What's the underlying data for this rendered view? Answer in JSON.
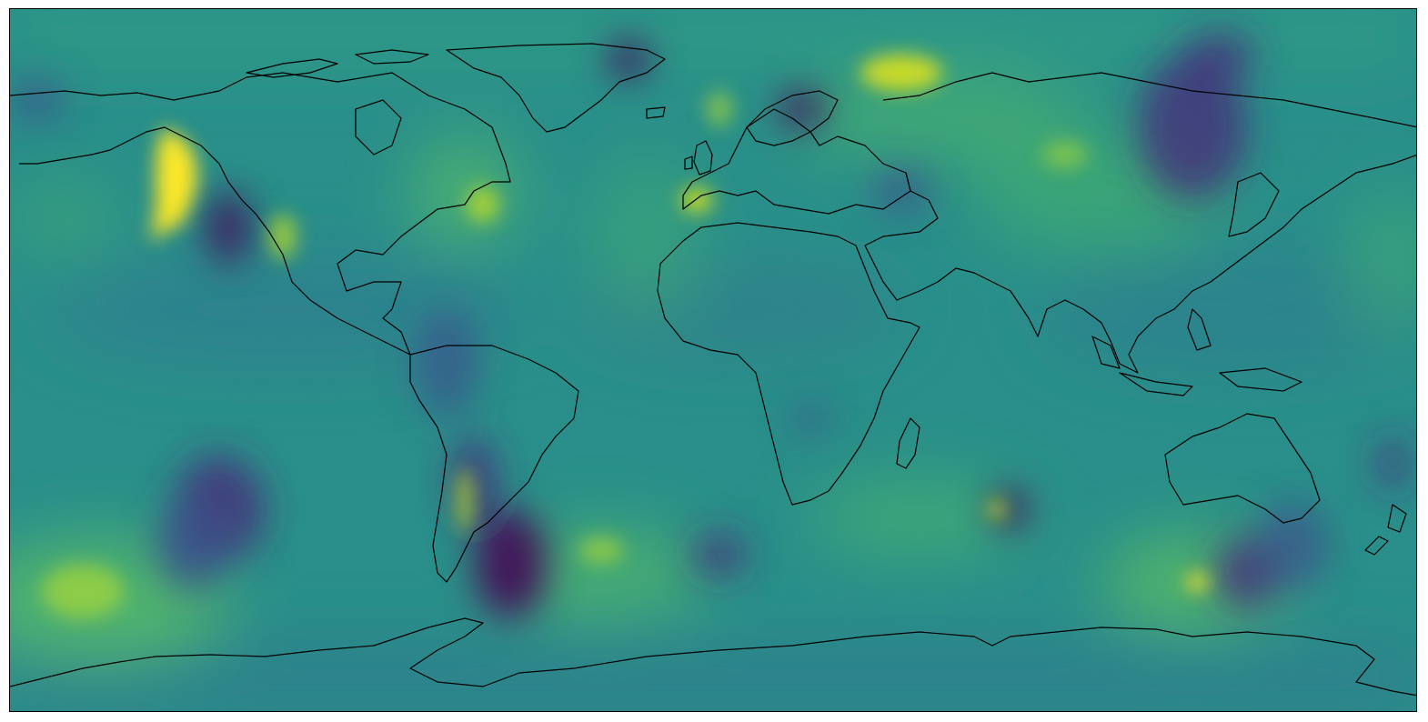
{
  "map": {
    "projection": "equirectangular",
    "colormap": "viridis",
    "palette": {
      "deep_purple": "#440154",
      "purple": "#472a7a",
      "blue": "#3b528b",
      "teal_blue": "#2c728e",
      "teal": "#21918c",
      "green": "#28ae80",
      "light_green": "#5ec962",
      "yellow_green": "#addc30",
      "yellow": "#fde725"
    },
    "coastline_color": "#000000",
    "colorbar": false,
    "title": ""
  }
}
